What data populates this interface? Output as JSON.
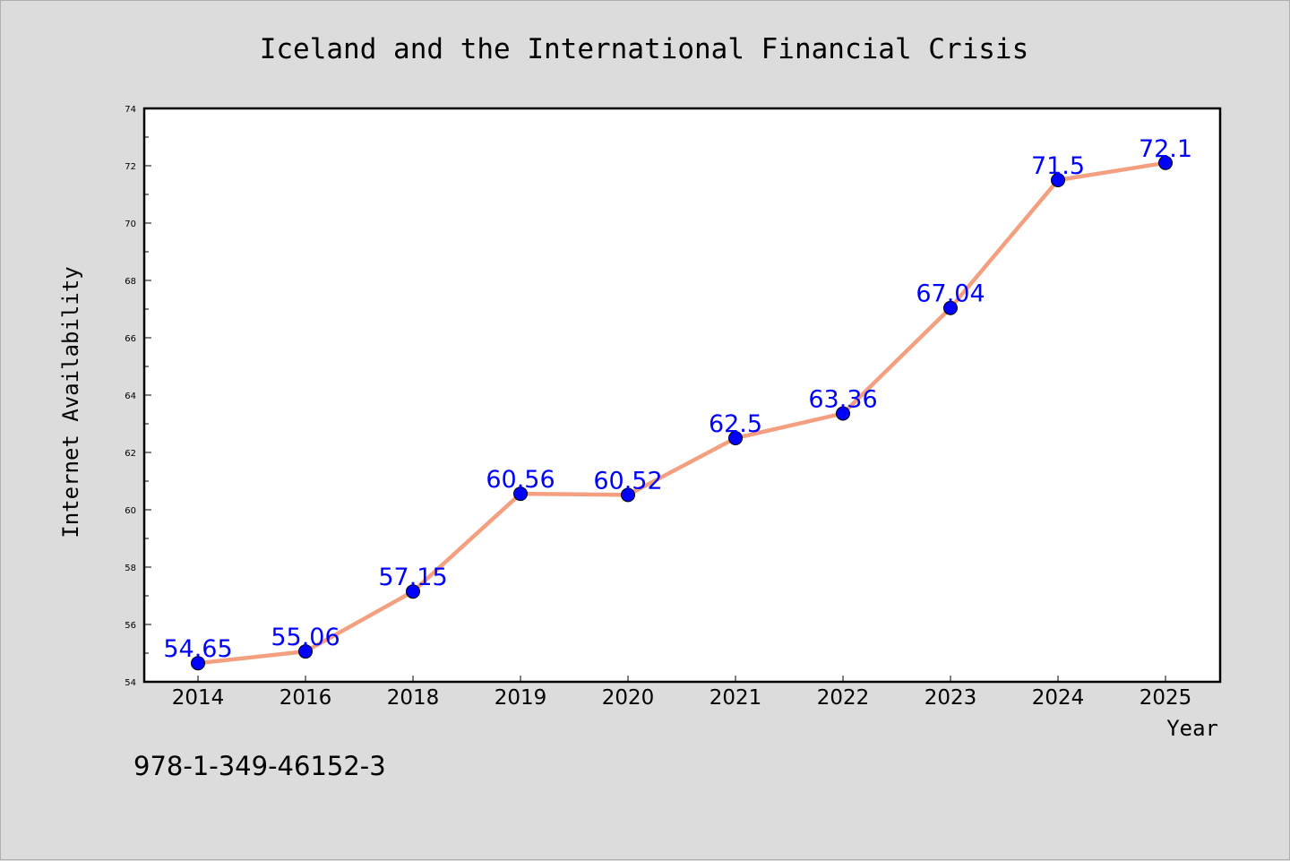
{
  "chart_data": {
    "type": "line",
    "title": "Iceland and the International Financial Crisis",
    "xlabel": "Year",
    "ylabel": "Internet Availability",
    "categories": [
      "2014",
      "2016",
      "2018",
      "2019",
      "2020",
      "2021",
      "2022",
      "2023",
      "2024",
      "2025"
    ],
    "series": [
      {
        "values": [
          54.65,
          55.06,
          57.15,
          60.56,
          60.52,
          62.5,
          63.36,
          67.04,
          71.5,
          72.1
        ],
        "labels": [
          "54.65",
          "55.06",
          "57.15",
          "60.56",
          "60.52",
          "62.5",
          "63.36",
          "67.04",
          "71.5",
          "72.1"
        ],
        "line_color": "#f4a080",
        "marker_color": "#0000ff"
      }
    ],
    "ylim": [
      54,
      74
    ],
    "yticks": [
      "54",
      "56",
      "58",
      "60",
      "62",
      "64",
      "66",
      "68",
      "70",
      "72",
      "74"
    ],
    "grid": false,
    "legend": "none"
  },
  "footer": {
    "isbn": "978-1-349-46152-3"
  },
  "colors": {
    "background": "#dcdcdc",
    "plot_background": "#ffffff",
    "axis": "#000000",
    "line": "#f4a080",
    "marker": "#0000ff",
    "label": "#0000ff"
  }
}
